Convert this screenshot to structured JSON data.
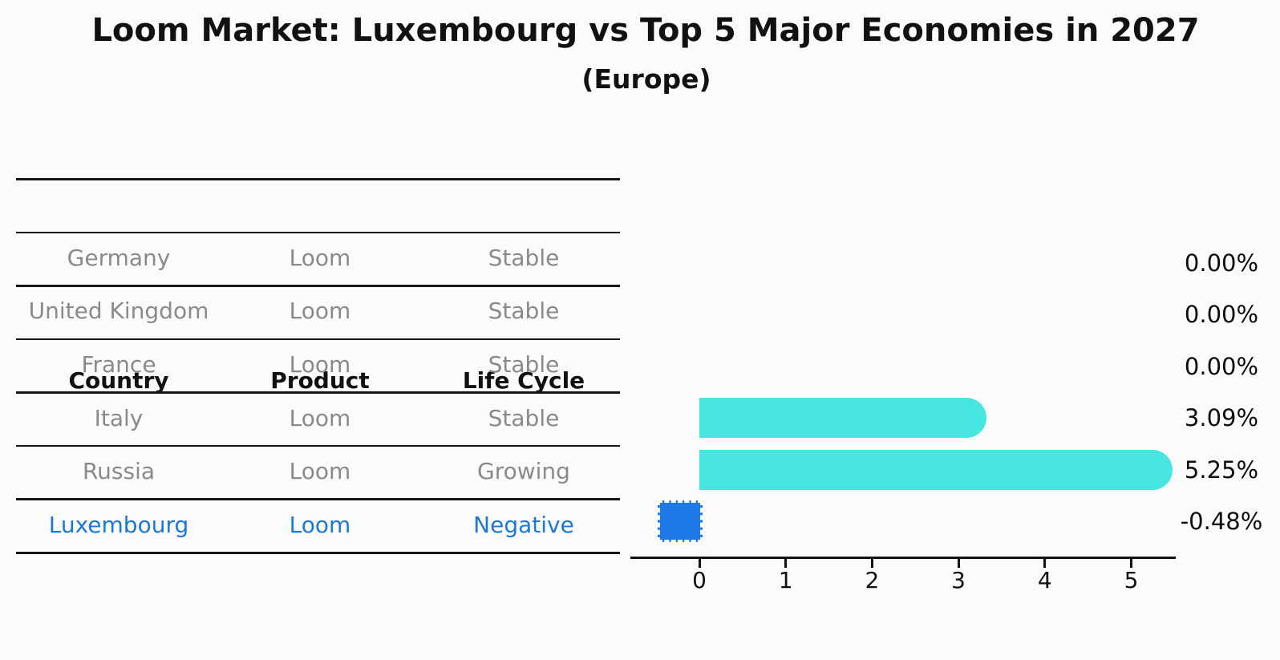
{
  "title": "Loom Market: Luxembourg vs Top 5 Major Economies in 2027",
  "subtitle": "(Europe)",
  "table": {
    "headers": [
      "Country",
      "Product",
      "Life Cycle"
    ],
    "rows": [
      {
        "country": "Germany",
        "product": "Loom",
        "life_cycle": "Stable",
        "highlight": false
      },
      {
        "country": "United Kingdom",
        "product": "Loom",
        "life_cycle": "Stable",
        "highlight": false
      },
      {
        "country": "France",
        "product": "Loom",
        "life_cycle": "Stable",
        "highlight": false
      },
      {
        "country": "Italy",
        "product": "Loom",
        "life_cycle": "Stable",
        "highlight": false
      },
      {
        "country": "Russia",
        "product": "Loom",
        "life_cycle": "Growing",
        "highlight": false
      },
      {
        "country": "Luxembourg",
        "product": "Loom",
        "life_cycle": "Negative",
        "highlight": true
      }
    ]
  },
  "chart_data": {
    "type": "bar",
    "orientation": "horizontal",
    "title": "Loom Market: Luxembourg vs Top 5 Major Economies in 2027 (Europe)",
    "categories": [
      "Germany",
      "United Kingdom",
      "France",
      "Italy",
      "Russia",
      "Luxembourg"
    ],
    "values": [
      0.0,
      0.0,
      0.0,
      3.09,
      5.25,
      -0.48
    ],
    "value_labels": [
      "0.00%",
      "0.00%",
      "0.00%",
      "3.09%",
      "5.25%",
      "-0.48%"
    ],
    "xlabel": "",
    "ylabel": "",
    "xticks": [
      0,
      1,
      2,
      3,
      4,
      5
    ],
    "xlim": [
      -0.81,
      5.53
    ],
    "grid": false,
    "legend": false,
    "bar_color_positive": "#47E6E0",
    "bar_color_negative": "#1E79E6"
  },
  "colors": {
    "positive_bar": "#47E6E0",
    "negative_bar": "#1E79E6",
    "highlight_text": "#1C78D8",
    "muted_text": "#8A8A8A",
    "axis_text": "#111111"
  }
}
